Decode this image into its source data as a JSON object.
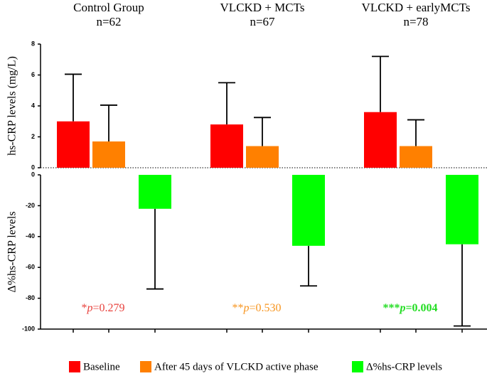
{
  "chart_data": [
    {
      "type": "bar",
      "categories": [
        "Control Group",
        "VLCKD + MCTs",
        "VLCKD + earlyMCTs"
      ],
      "subtitles": [
        "n=62",
        "n=67",
        "n=78"
      ],
      "ylabel": "hs-CRP levels (mg/L)",
      "ylim": [
        0,
        8
      ],
      "yticks": [
        0,
        2,
        4,
        6,
        8
      ],
      "series": [
        {
          "name": "Baseline",
          "color": "#ff0000",
          "values": [
            3.0,
            2.8,
            3.6
          ],
          "errors": [
            3.05,
            2.7,
            3.6
          ]
        },
        {
          "name": "After 45 days of VLCKD active phase",
          "color": "#ff8000",
          "values": [
            1.7,
            1.4,
            1.4
          ],
          "errors": [
            2.35,
            1.85,
            1.7
          ]
        }
      ]
    },
    {
      "type": "bar",
      "ylabel": "Δ%hs-CRP levels",
      "ylim": [
        -100,
        0
      ],
      "yticks": [
        0,
        -20,
        -40,
        -60,
        -80,
        -100
      ],
      "series": [
        {
          "name": "Δ%hs-CRP levels",
          "color": "#00ff00",
          "values": [
            -22,
            -46,
            -45
          ],
          "errors": [
            52,
            26,
            53
          ]
        }
      ],
      "annotations": [
        {
          "stars": "*",
          "p": "p",
          "text": "=0.279",
          "color": "#e8413c",
          "bold": false
        },
        {
          "stars": "**",
          "p": "p",
          "text": "=0.530",
          "color": "#f7941d",
          "bold": false
        },
        {
          "stars": "***",
          "p": "p",
          "text": "=0.004",
          "color": "#22dd22",
          "bold": true
        }
      ]
    }
  ]
}
